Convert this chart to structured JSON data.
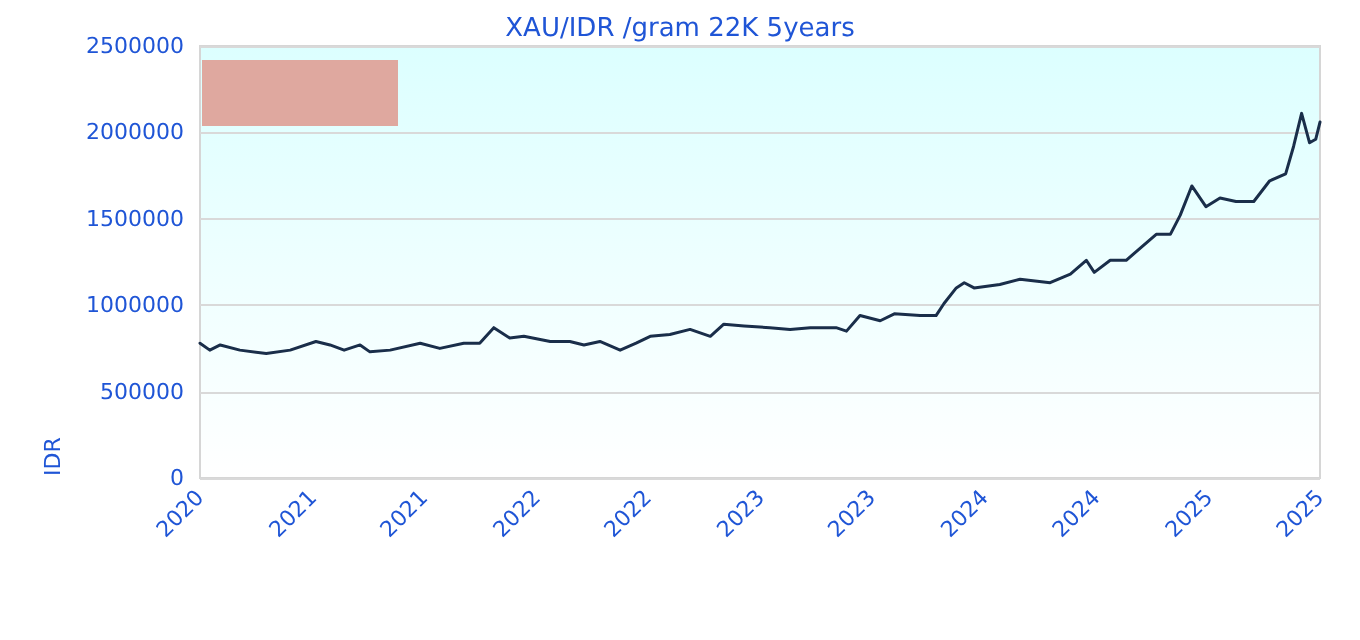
{
  "chart_data": {
    "type": "line",
    "title": "XAU/IDR /gram 22K 5years",
    "ylabel": "IDR",
    "x": [
      "2020-07-01",
      "2020-07-17",
      "2020-08-03",
      "2020-09-04",
      "2020-10-17",
      "2020-11-25",
      "2021-01-06",
      "2021-01-29",
      "2021-02-21",
      "2021-03-19",
      "2021-04-04",
      "2021-05-07",
      "2021-06-25",
      "2021-07-27",
      "2021-09-04",
      "2021-09-30",
      "2021-10-23",
      "2021-11-18",
      "2021-12-11",
      "2022-01-23",
      "2022-02-24",
      "2022-03-19",
      "2022-04-14",
      "2022-05-17",
      "2022-06-12",
      "2022-07-05",
      "2022-08-06",
      "2022-09-08",
      "2022-10-11",
      "2022-11-02",
      "2022-12-05",
      "2023-01-16",
      "2023-02-18",
      "2023-03-23",
      "2023-05-04",
      "2023-05-21",
      "2023-06-12",
      "2023-07-15",
      "2023-08-07",
      "2023-09-18",
      "2023-10-14",
      "2023-10-27",
      "2023-11-16",
      "2023-11-29",
      "2023-12-15",
      "2024-01-26",
      "2024-02-28",
      "2024-04-17",
      "2024-05-20",
      "2024-06-15",
      "2024-06-28",
      "2024-07-24",
      "2024-08-19",
      "2024-09-11",
      "2024-10-07",
      "2024-10-30",
      "2024-11-15",
      "2024-12-04",
      "2024-12-27",
      "2025-01-19",
      "2025-02-14",
      "2025-03-15",
      "2025-04-10",
      "2025-05-06",
      "2025-05-19",
      "2025-06-01",
      "2025-06-14",
      "2025-06-24",
      "2025-07-01"
    ],
    "series": [
      {
        "color": "#1a2e4a",
        "values": [
          780000,
          740000,
          770000,
          740000,
          720000,
          740000,
          790000,
          770000,
          740000,
          770000,
          730000,
          740000,
          780000,
          750000,
          780000,
          780000,
          870000,
          810000,
          820000,
          790000,
          790000,
          770000,
          790000,
          740000,
          780000,
          820000,
          830000,
          860000,
          820000,
          890000,
          880000,
          870000,
          860000,
          870000,
          870000,
          850000,
          940000,
          910000,
          950000,
          940000,
          940000,
          1010000,
          1100000,
          1130000,
          1100000,
          1120000,
          1150000,
          1130000,
          1180000,
          1260000,
          1190000,
          1260000,
          1260000,
          1330000,
          1410000,
          1410000,
          1520000,
          1690000,
          1570000,
          1620000,
          1600000,
          1600000,
          1720000,
          1760000,
          1920000,
          2110000,
          1940000,
          1960000,
          2060000
        ]
      }
    ],
    "xlim": [
      "2020-07-01",
      "2025-07-01"
    ],
    "xticks": [
      {
        "value": "2020-07-01",
        "label": "2020"
      },
      {
        "value": "2021-01-01",
        "label": "2021"
      },
      {
        "value": "2021-07-01",
        "label": "2021"
      },
      {
        "value": "2022-01-01",
        "label": "2022"
      },
      {
        "value": "2022-07-01",
        "label": "2022"
      },
      {
        "value": "2023-01-01",
        "label": "2023"
      },
      {
        "value": "2023-07-01",
        "label": "2023"
      },
      {
        "value": "2024-01-01",
        "label": "2024"
      },
      {
        "value": "2024-07-01",
        "label": "2024"
      },
      {
        "value": "2025-01-01",
        "label": "2025"
      },
      {
        "value": "2025-07-01",
        "label": "2025"
      }
    ],
    "ylim": [
      0,
      2500000
    ],
    "yticks": [
      0,
      500000,
      1000000,
      1500000,
      2000000,
      2500000
    ],
    "grid": "y",
    "marker": "none",
    "line_style": "solid"
  }
}
